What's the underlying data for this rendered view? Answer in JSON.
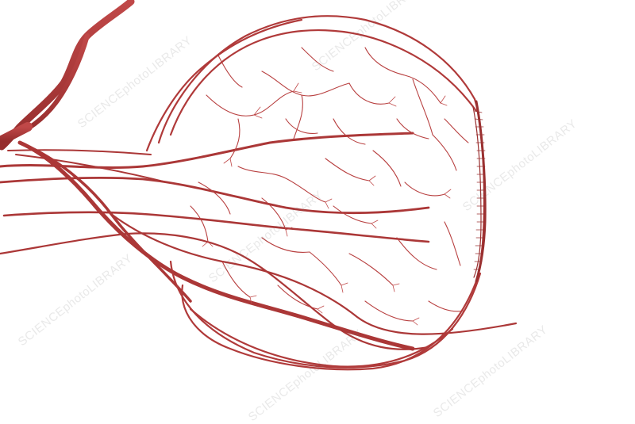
{
  "image": {
    "subject": "eye-blood-vessels-illustration",
    "background_color": "#ffffff",
    "vessel_color": "#b03a3a",
    "vessel_dark_color": "#8e2a2a",
    "watermark_color": "#9a9a9a"
  },
  "watermarks": {
    "w1": "SCIENCEphotoLIBRARY",
    "w2": "SCIENCEphotoLIBRARY",
    "w3": "SCIENCEphotoLIBRARY",
    "w4": "SCIENCEphotoLIBRARY",
    "w5": "SCIENCEphotoLIBRARY",
    "w6": "SCIENCEphotoLIBRARY",
    "w7": "SCIENCEphotoLIBRARY"
  }
}
